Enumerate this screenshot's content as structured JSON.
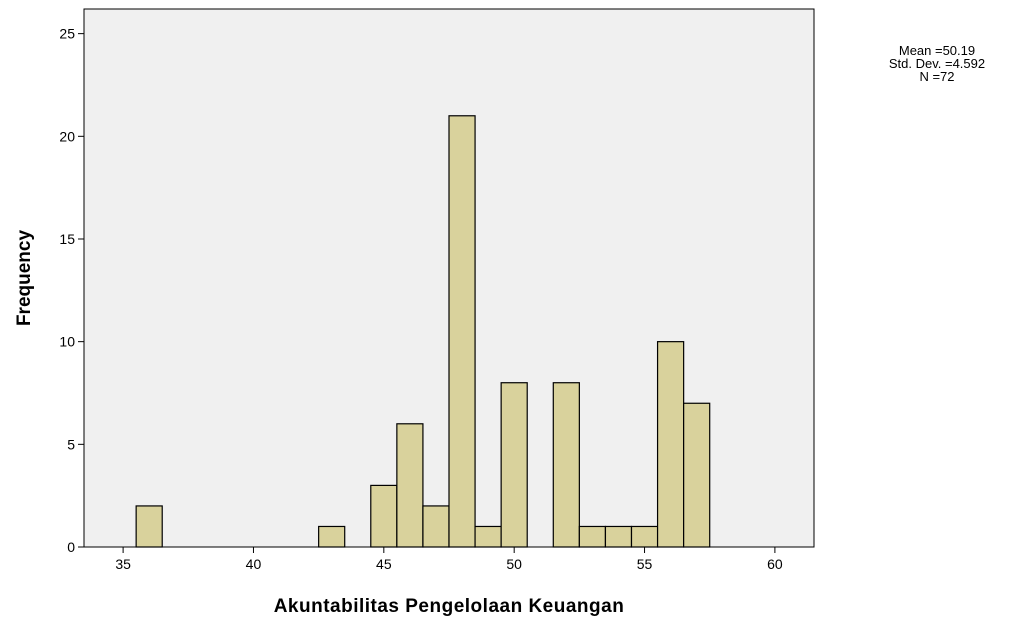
{
  "chart_data": {
    "type": "bar",
    "subtype": "histogram",
    "xlabel": "Akuntabilitas Pengelolaan Keuangan",
    "ylabel": "Frequency",
    "xlim": [
      33.5,
      61.5
    ],
    "ylim": [
      0,
      26.2
    ],
    "xticks": [
      "35",
      "40",
      "45",
      "50",
      "55",
      "60"
    ],
    "yticks": [
      "0",
      "5",
      "10",
      "15",
      "20",
      "25"
    ],
    "bin_width": 1,
    "bins": [
      {
        "x": 36,
        "count": 2
      },
      {
        "x": 43,
        "count": 1
      },
      {
        "x": 45,
        "count": 3
      },
      {
        "x": 46,
        "count": 6
      },
      {
        "x": 47,
        "count": 2
      },
      {
        "x": 48,
        "count": 21
      },
      {
        "x": 49,
        "count": 1
      },
      {
        "x": 50,
        "count": 8
      },
      {
        "x": 52,
        "count": 8
      },
      {
        "x": 53,
        "count": 1
      },
      {
        "x": 54,
        "count": 1
      },
      {
        "x": 55,
        "count": 1
      },
      {
        "x": 56,
        "count": 10
      },
      {
        "x": 57,
        "count": 7
      }
    ],
    "grid": false,
    "colors": {
      "bar_fill": "#d9d29c",
      "bar_stroke": "#000000",
      "plot_bg": "#f0f0f0"
    }
  },
  "stats": {
    "mean": "Mean =50.19",
    "std": "Std. Dev. =4.592",
    "n": "N =72"
  }
}
